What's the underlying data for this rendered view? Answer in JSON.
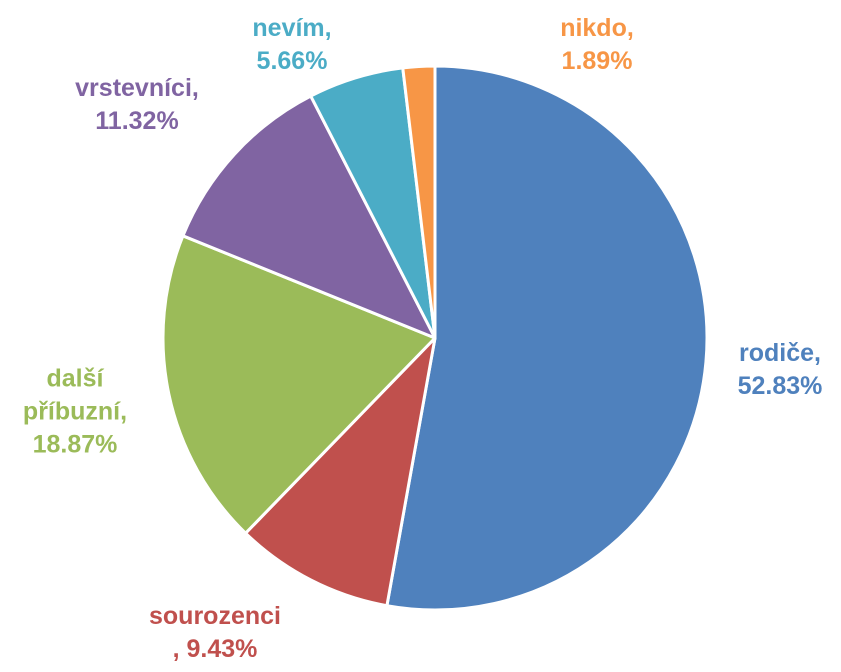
{
  "chart_data": {
    "type": "pie",
    "categories": [
      "rodiče,",
      "sourozenci",
      "další příbuzní,",
      "vrstevníci,",
      "nevím,",
      "nikdo,"
    ],
    "values": [
      52.83,
      9.43,
      18.87,
      11.32,
      5.66,
      1.89
    ],
    "value_labels": [
      "52.83%",
      ", 9.43%",
      "18.87%",
      "11.32%",
      "5.66%",
      "1.89%"
    ],
    "colors": [
      "#4f81bd",
      "#c0504d",
      "#9bbb59",
      "#8064a2",
      "#4bacc6",
      "#f79646"
    ]
  }
}
